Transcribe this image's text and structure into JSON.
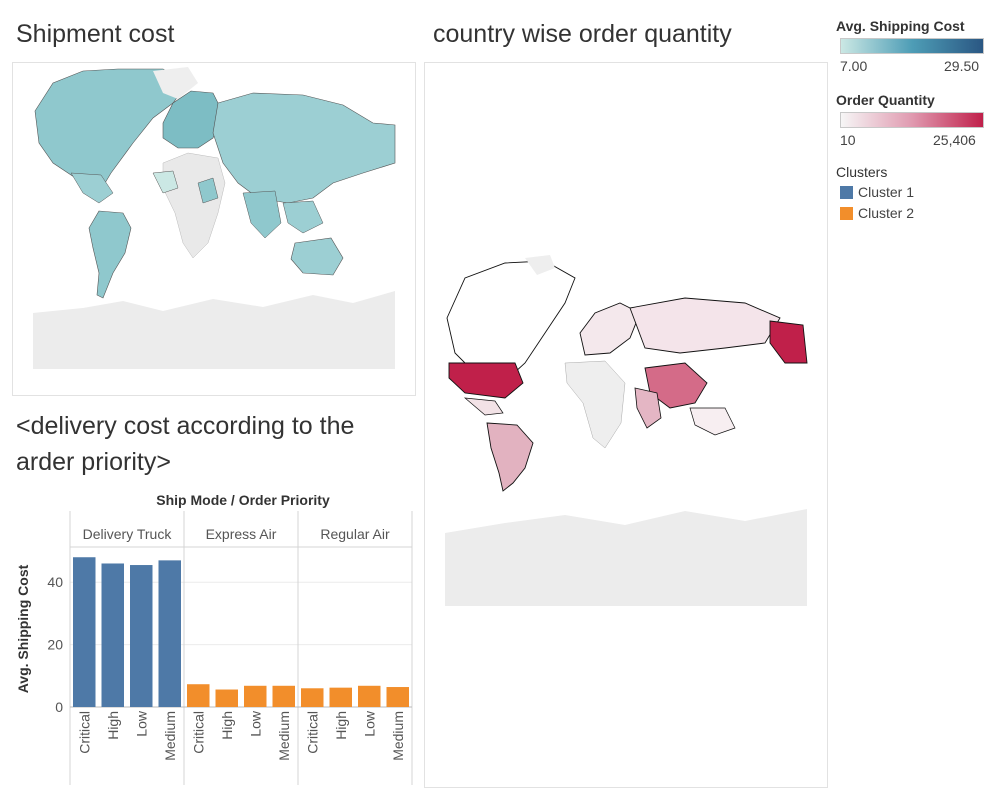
{
  "dashboard": {
    "shipment_title": "Shipment cost",
    "country_title": "country wise order quantity",
    "bar_title_line1": "<delivery cost according to the",
    "bar_title_line2": "arder priority>"
  },
  "legend": {
    "shipping_cost": {
      "title": "Avg. Shipping Cost",
      "min": "7.00",
      "max": "29.50",
      "color_low": "#cbe8e4",
      "color_high": "#2a5783"
    },
    "order_quantity": {
      "title": "Order Quantity",
      "min": "10",
      "max": "25,406",
      "color_low": "#f6f6f6",
      "color_high": "#c0204a"
    },
    "clusters": {
      "title": "Clusters",
      "items": [
        {
          "label": "Cluster 1",
          "color": "#4e79a7"
        },
        {
          "label": "Cluster 2",
          "color": "#f28e2b"
        }
      ]
    }
  },
  "chart_data": [
    {
      "type": "bar",
      "title": "Ship Mode / Order Priority",
      "ylabel": "Avg. Shipping Cost",
      "xlabel": "",
      "ylim": [
        0,
        50
      ],
      "yticks": [
        0,
        20,
        40
      ],
      "grid": true,
      "groups": [
        {
          "name": "Delivery Truck",
          "cluster": "Cluster 1",
          "categories": [
            "Critical",
            "High",
            "Low",
            "Medium"
          ],
          "values": [
            48,
            46,
            45.5,
            47
          ]
        },
        {
          "name": "Express Air",
          "cluster": "Cluster 2",
          "categories": [
            "Critical",
            "High",
            "Low",
            "Medium"
          ],
          "values": [
            7.3,
            5.6,
            6.8,
            6.8
          ]
        },
        {
          "name": "Regular Air",
          "cluster": "Cluster 2",
          "categories": [
            "Critical",
            "High",
            "Low",
            "Medium"
          ],
          "values": [
            6.0,
            6.2,
            6.8,
            6.4
          ]
        }
      ]
    }
  ]
}
